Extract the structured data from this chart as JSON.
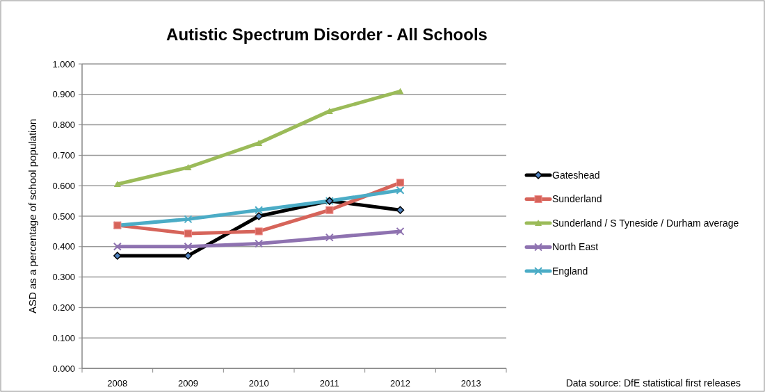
{
  "chart_data": {
    "type": "line",
    "title": "Autistic Spectrum Disorder - All Schools",
    "ylabel": "ASD as a percentage of school population",
    "categories": [
      "2008",
      "2009",
      "2010",
      "2011",
      "2012",
      "2013"
    ],
    "series": [
      {
        "name": "Gateshead",
        "color": "#000000",
        "marker": "diamond",
        "values": [
          0.37,
          0.37,
          0.5,
          0.55,
          0.52,
          null
        ]
      },
      {
        "name": "Sunderland",
        "color": "#d6645a",
        "marker": "square",
        "values": [
          0.47,
          0.443,
          0.45,
          0.52,
          0.61,
          null
        ]
      },
      {
        "name": "Sunderland / S Tyneside / Durham average",
        "color": "#9bbb59",
        "marker": "triangle",
        "values": [
          0.605,
          0.66,
          0.74,
          0.845,
          0.91,
          null
        ]
      },
      {
        "name": "North East",
        "color": "#8e72b0",
        "marker": "cross",
        "values": [
          0.4,
          0.4,
          0.41,
          0.43,
          0.45,
          null
        ]
      },
      {
        "name": "England",
        "color": "#4bacc6",
        "marker": "cross",
        "values": [
          0.47,
          0.49,
          0.52,
          0.55,
          0.585,
          null
        ]
      }
    ],
    "ylim": [
      0,
      1
    ],
    "yticks": [
      {
        "value": 0,
        "label": "0.000"
      },
      {
        "value": 0.1,
        "label": "0.100"
      },
      {
        "value": 0.2,
        "label": "0.200"
      },
      {
        "value": 0.3,
        "label": "0.300"
      },
      {
        "value": 0.4,
        "label": "0.400"
      },
      {
        "value": 0.5,
        "label": "0.500"
      },
      {
        "value": 0.6,
        "label": "0.600"
      },
      {
        "value": 0.7,
        "label": "0.700"
      },
      {
        "value": 0.8,
        "label": "0.800"
      },
      {
        "value": 0.9,
        "label": "0.900"
      },
      {
        "value": 1,
        "label": "1.000"
      }
    ],
    "grid": "y",
    "legend": "right",
    "line_style": "solid",
    "annotations": [
      "Data source: DfE statistical first releases"
    ]
  }
}
